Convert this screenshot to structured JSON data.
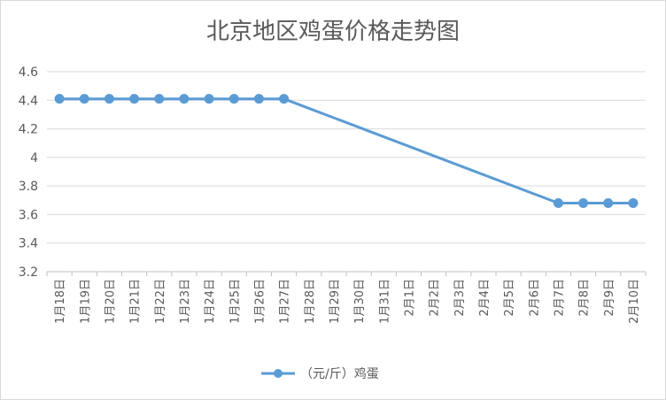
{
  "chart_data": {
    "type": "line",
    "title": "北京地区鸡蛋价格走势图",
    "xlabel": "",
    "ylabel": "",
    "ylim": [
      3.2,
      4.6
    ],
    "yticks": [
      "3.2",
      "3.4",
      "3.6",
      "3.8",
      "4",
      "4.2",
      "4.4",
      "4.6"
    ],
    "grid": true,
    "legend": "bottom",
    "categories": [
      "1月18日",
      "1月19日",
      "1月20日",
      "1月21日",
      "1月22日",
      "1月23日",
      "1月24日",
      "1月25日",
      "1月26日",
      "1月27日",
      "1月28日",
      "1月29日",
      "1月30日",
      "1月31日",
      "2月1日",
      "2月2日",
      "2月3日",
      "2月4日",
      "2月5日",
      "2月6日",
      "2月7日",
      "2月8日",
      "2月9日",
      "2月10日"
    ],
    "series": [
      {
        "name": "（元/斤）鸡蛋",
        "color": "#5b9bd5",
        "values": [
          4.41,
          4.41,
          4.41,
          4.41,
          4.41,
          4.41,
          4.41,
          4.41,
          4.41,
          4.41,
          null,
          null,
          null,
          null,
          null,
          null,
          null,
          null,
          null,
          null,
          3.68,
          3.68,
          3.68,
          3.68
        ]
      }
    ]
  }
}
